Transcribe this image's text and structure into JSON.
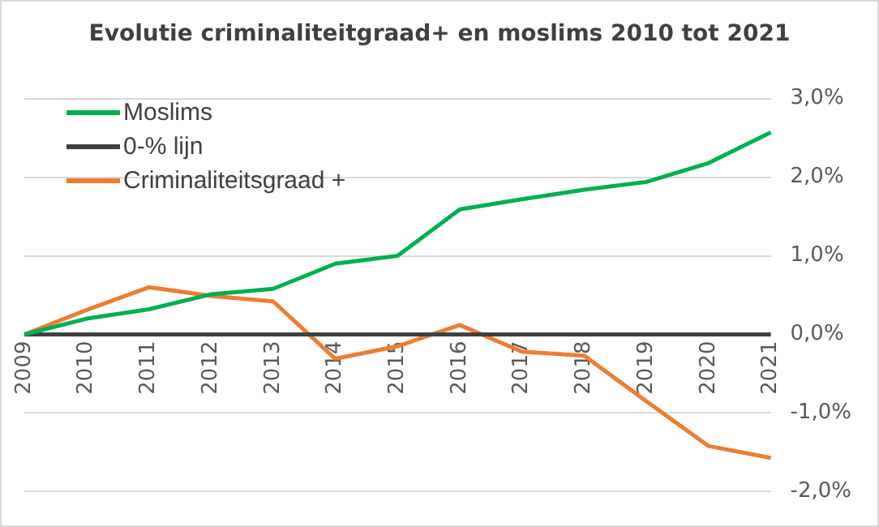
{
  "chart_data": {
    "type": "line",
    "title": "Evolutie criminaliteitgraad+  en moslims 2010 tot 2021",
    "categories": [
      "2009",
      "2010",
      "2011",
      "2012",
      "2013",
      "2014",
      "2015",
      "2016",
      "2017",
      "2018",
      "2019",
      "2020",
      "2021"
    ],
    "series": [
      {
        "name": "Moslims",
        "color": "#00b050",
        "values": [
          0,
          0.2,
          0.32,
          0.51,
          0.58,
          0.9,
          1.0,
          1.59,
          1.72,
          1.84,
          1.94,
          2.18,
          2.57
        ]
      },
      {
        "name": "0-% lijn",
        "color": "#404040",
        "values": [
          0,
          0,
          0,
          0,
          0,
          0,
          0,
          0,
          0,
          0,
          0,
          0,
          0
        ]
      },
      {
        "name": "Criminaliteitsgraad +",
        "color": "#ed7d31",
        "values": [
          0,
          0.31,
          0.6,
          0.49,
          0.42,
          -0.31,
          -0.15,
          0.12,
          -0.22,
          -0.27,
          -0.85,
          -1.42,
          -1.57
        ]
      }
    ],
    "ylim": [
      -2,
      3
    ],
    "yticks": [
      {
        "value": -2,
        "label": "-2,0%"
      },
      {
        "value": -1,
        "label": "-1,0%"
      },
      {
        "value": 0,
        "label": "0,0%"
      },
      {
        "value": 1,
        "label": "1,0%"
      },
      {
        "value": 2,
        "label": "2,0%"
      },
      {
        "value": 3,
        "label": "3,0%"
      }
    ],
    "grid": "y",
    "legend": "top left",
    "marker": "none",
    "line_style": "solid"
  }
}
